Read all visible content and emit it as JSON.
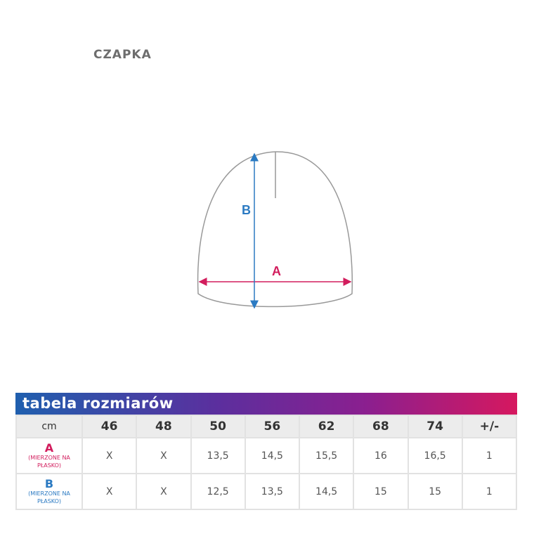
{
  "title": "CZAPKA",
  "diagram": {
    "label_a": "A",
    "label_b": "B",
    "color_a": "#d21d5d",
    "color_b": "#2b7ac2"
  },
  "table": {
    "heading": "Tabela rozmiarów",
    "unit": "cm",
    "sizes": [
      "46",
      "48",
      "50",
      "56",
      "62",
      "68",
      "74",
      "+/-"
    ],
    "rows": [
      {
        "label": "A",
        "note": "(MIERZONE NA PŁASKO)",
        "values": [
          "X",
          "X",
          "13,5",
          "14,5",
          "15,5",
          "16",
          "16,5",
          "1"
        ]
      },
      {
        "label": "B",
        "note": "(MIERZONE NA PŁASKO)",
        "values": [
          "X",
          "X",
          "12,5",
          "13,5",
          "14,5",
          "15",
          "15",
          "1"
        ]
      }
    ]
  }
}
